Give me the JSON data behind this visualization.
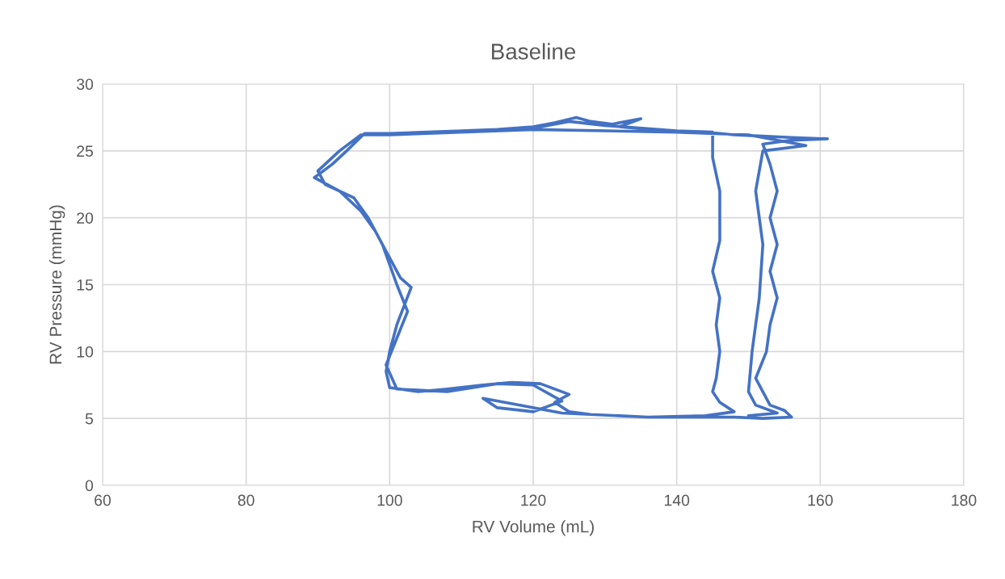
{
  "chart_data": {
    "type": "line",
    "title": "Baseline",
    "xlabel": "RV Volume (mL)",
    "ylabel": "RV Pressure (mmHg)",
    "xlim": [
      60,
      180
    ],
    "xticks": [
      60,
      80,
      100,
      120,
      140,
      160,
      180
    ],
    "ylim": [
      0,
      30
    ],
    "yticks": [
      0,
      5,
      10,
      15,
      20,
      25,
      30
    ],
    "grid": true,
    "marker": "none",
    "line_style": "solid",
    "series": [
      {
        "color": "#4472c4",
        "x": [
          96.5,
          100,
          105,
          110,
          115,
          120,
          123,
          126,
          128,
          131,
          135,
          132,
          136,
          140,
          144,
          148,
          152,
          156,
          161,
          156,
          152,
          153,
          154,
          153,
          154,
          153,
          154,
          153,
          152.5,
          151,
          152,
          153,
          155,
          156,
          152,
          148,
          144,
          140,
          136,
          132,
          128,
          125,
          123,
          125,
          121,
          117,
          113,
          108,
          104,
          100,
          99.5,
          100,
          101,
          103,
          101.5,
          100,
          98,
          96,
          93,
          89.5,
          92,
          94,
          96.5,
          100,
          110,
          120,
          125,
          130,
          140,
          145,
          145,
          146,
          146,
          146,
          145,
          146,
          145.5,
          146,
          145.5,
          145,
          146,
          148,
          144,
          136,
          128,
          124,
          118,
          113,
          115,
          120,
          124,
          120,
          115,
          108,
          101,
          99.5,
          101,
          102.5,
          101,
          99,
          97,
          95,
          91,
          90,
          93,
          96,
          100,
          120,
          140,
          150,
          158,
          152,
          151,
          152,
          151.5,
          150.5,
          150,
          151,
          154,
          150
        ],
        "values": [
          26.3,
          26.3,
          26.3,
          26.5,
          26.6,
          26.8,
          27.1,
          27.5,
          27.2,
          27.0,
          27.4,
          26.8,
          26.6,
          26.5,
          26.4,
          26.2,
          26.1,
          26.0,
          25.9,
          25.8,
          25.5,
          24,
          22,
          20,
          18,
          16,
          14,
          12,
          10,
          8,
          7,
          6,
          5.6,
          5.1,
          5.0,
          5.1,
          5.1,
          5.1,
          5.1,
          5.2,
          5.3,
          5.5,
          6.2,
          6.8,
          7.6,
          7.7,
          7.5,
          7.2,
          7.0,
          7.3,
          8.5,
          10,
          12,
          14.8,
          15.5,
          17,
          19,
          20.5,
          22,
          23,
          24,
          25,
          26.3,
          26.3,
          26.5,
          26.7,
          27.2,
          26.9,
          26.5,
          26.4,
          24.5,
          22,
          20,
          18.3,
          16,
          14,
          12,
          10,
          8,
          7,
          6.2,
          5.5,
          5.2,
          5.1,
          5.3,
          5.4,
          6,
          6.5,
          5.8,
          5.5,
          6.3,
          7.5,
          7.6,
          7.0,
          7.2,
          9,
          11,
          13,
          15,
          18,
          20,
          21.5,
          22.5,
          23.5,
          25,
          26.2,
          26.2,
          26.6,
          26.4,
          26.2,
          25.4,
          25,
          22,
          18,
          14,
          10,
          7,
          6,
          5.4,
          5.2
        ]
      }
    ]
  }
}
